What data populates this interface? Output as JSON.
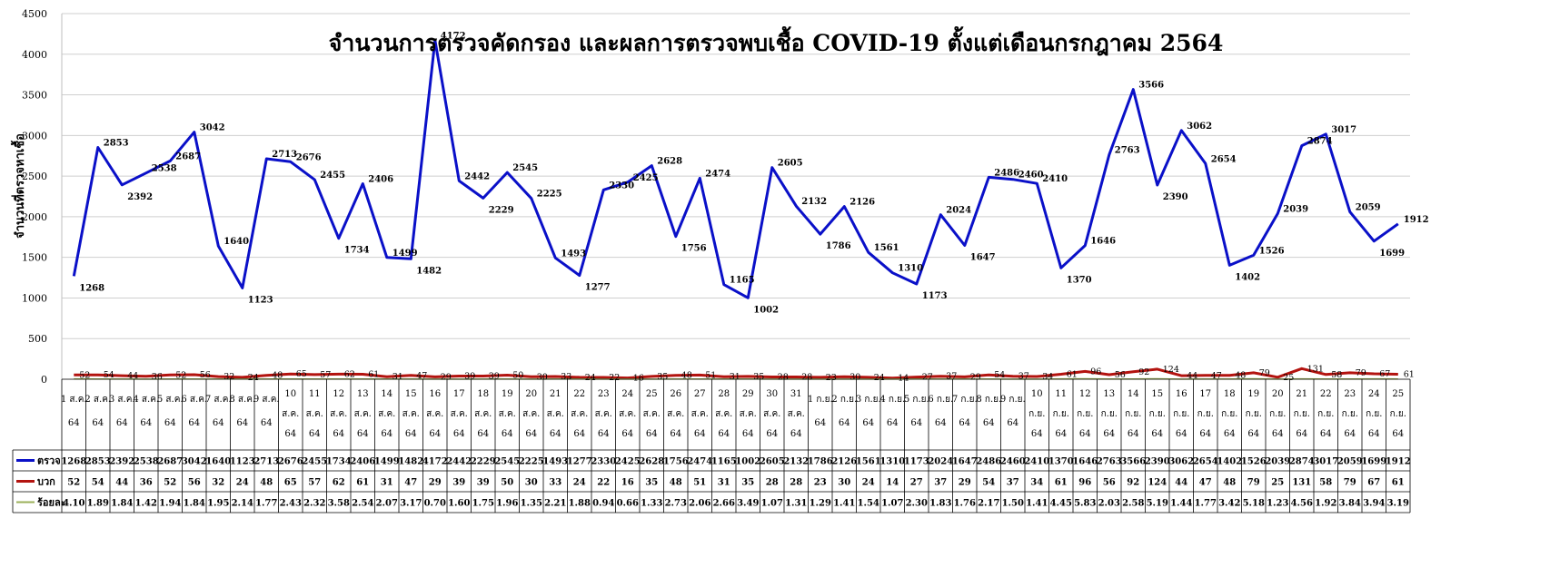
{
  "chart_data": {
    "type": "line",
    "title": "จำนวนการตรวจคัดกรอง และผลการตรวจพบเชื้อ COVID-19 ตั้งแต่เดือนกรกฎาคม 2564",
    "ylabel": "จำนวนที่ตรวจหาเชื้อ",
    "ylim": [
      0,
      4500
    ],
    "yticks": [
      0,
      500,
      1000,
      1500,
      2000,
      2500,
      3000,
      3500,
      4000,
      4500
    ],
    "grid": true,
    "categories": [
      [
        "1 ส.ค.",
        "64"
      ],
      [
        "2 ส.ค.",
        "64"
      ],
      [
        "3 ส.ค.",
        "64"
      ],
      [
        "4 ส.ค.",
        "64"
      ],
      [
        "5 ส.ค.",
        "64"
      ],
      [
        "6 ส.ค.",
        "64"
      ],
      [
        "7 ส.ค.",
        "64"
      ],
      [
        "8 ส.ค.",
        "64"
      ],
      [
        "9 ส.ค.",
        "64"
      ],
      [
        "10",
        "ส.ค.",
        "64"
      ],
      [
        "11",
        "ส.ค.",
        "64"
      ],
      [
        "12",
        "ส.ค.",
        "64"
      ],
      [
        "13",
        "ส.ค.",
        "64"
      ],
      [
        "14",
        "ส.ค.",
        "64"
      ],
      [
        "15",
        "ส.ค.",
        "64"
      ],
      [
        "16",
        "ส.ค.",
        "64"
      ],
      [
        "17",
        "ส.ค.",
        "64"
      ],
      [
        "18",
        "ส.ค.",
        "64"
      ],
      [
        "19",
        "ส.ค.",
        "64"
      ],
      [
        "20",
        "ส.ค.",
        "64"
      ],
      [
        "21",
        "ส.ค.",
        "64"
      ],
      [
        "22",
        "ส.ค.",
        "64"
      ],
      [
        "23",
        "ส.ค.",
        "64"
      ],
      [
        "24",
        "ส.ค.",
        "64"
      ],
      [
        "25",
        "ส.ค.",
        "64"
      ],
      [
        "26",
        "ส.ค.",
        "64"
      ],
      [
        "27",
        "ส.ค.",
        "64"
      ],
      [
        "28",
        "ส.ค.",
        "64"
      ],
      [
        "29",
        "ส.ค.",
        "64"
      ],
      [
        "30",
        "ส.ค.",
        "64"
      ],
      [
        "31",
        "ส.ค.",
        "64"
      ],
      [
        "1 ก.ย.",
        "64"
      ],
      [
        "2 ก.ย.",
        "64"
      ],
      [
        "3 ก.ย.",
        "64"
      ],
      [
        "4 ก.ย.",
        "64"
      ],
      [
        "5 ก.ย.",
        "64"
      ],
      [
        "6 ก.ย.",
        "64"
      ],
      [
        "7 ก.ย.",
        "64"
      ],
      [
        "8 ก.ย.",
        "64"
      ],
      [
        "9 ก.ย.",
        "64"
      ],
      [
        "10",
        "ก.ย.",
        "64"
      ],
      [
        "11",
        "ก.ย.",
        "64"
      ],
      [
        "12",
        "ก.ย.",
        "64"
      ],
      [
        "13",
        "ก.ย.",
        "64"
      ],
      [
        "14",
        "ก.ย.",
        "64"
      ],
      [
        "15",
        "ก.ย.",
        "64"
      ],
      [
        "16",
        "ก.ย.",
        "64"
      ],
      [
        "17",
        "ก.ย.",
        "64"
      ],
      [
        "18",
        "ก.ย.",
        "64"
      ],
      [
        "19",
        "ก.ย.",
        "64"
      ],
      [
        "20",
        "ก.ย.",
        "64"
      ],
      [
        "21",
        "ก.ย.",
        "64"
      ],
      [
        "22",
        "ก.ย.",
        "64"
      ],
      [
        "23",
        "ก.ย.",
        "64"
      ],
      [
        "24",
        "ก.ย.",
        "64"
      ],
      [
        "25",
        "ก.ย.",
        "64"
      ]
    ],
    "series": [
      {
        "name": "ตรวจ",
        "color": "#0a10c8",
        "labels_on_chart": true,
        "values": [
          1268,
          2853,
          2392,
          2538,
          2687,
          3042,
          1640,
          1123,
          2713,
          2676,
          2455,
          1734,
          2406,
          1499,
          1482,
          4172,
          2442,
          2229,
          2545,
          2225,
          1493,
          1277,
          2330,
          2425,
          2628,
          1756,
          2474,
          1165,
          1002,
          2605,
          2132,
          1786,
          2126,
          1561,
          1310,
          1173,
          2024,
          1647,
          2486,
          2460,
          2410,
          1370,
          1646,
          2763,
          3566,
          2390,
          3062,
          2654,
          1402,
          1526,
          2039,
          2874,
          3017,
          2059,
          1699,
          1912
        ]
      },
      {
        "name": "บวก",
        "color": "#b3130f",
        "labels_on_chart": true,
        "values": [
          52,
          54,
          44,
          36,
          52,
          56,
          32,
          24,
          48,
          65,
          57,
          62,
          61,
          31,
          47,
          29,
          39,
          39,
          50,
          30,
          33,
          24,
          22,
          16,
          35,
          48,
          51,
          31,
          35,
          28,
          28,
          23,
          30,
          24,
          14,
          27,
          37,
          29,
          54,
          37,
          34,
          61,
          96,
          56,
          92,
          124,
          44,
          47,
          48,
          79,
          25,
          131,
          58,
          79,
          67,
          61
        ]
      },
      {
        "name": "ร้อยละ",
        "color": "#9bb05a",
        "labels_on_chart": false,
        "values": [
          "4.10",
          "1.89",
          "1.84",
          "1.42",
          "1.94",
          "1.84",
          "1.95",
          "2.14",
          "1.77",
          "2.43",
          "2.32",
          "3.58",
          "2.54",
          "2.07",
          "3.17",
          "0.70",
          "1.60",
          "1.75",
          "1.96",
          "1.35",
          "2.21",
          "1.88",
          "0.94",
          "0.66",
          "1.33",
          "2.73",
          "2.06",
          "2.66",
          "3.49",
          "1.07",
          "1.31",
          "1.29",
          "1.41",
          "1.54",
          "1.07",
          "2.30",
          "1.83",
          "1.76",
          "2.17",
          "1.50",
          "1.41",
          "4.45",
          "5.83",
          "2.03",
          "2.58",
          "5.19",
          "1.44",
          "1.77",
          "3.42",
          "5.18",
          "1.23",
          "4.56",
          "1.92",
          "3.84",
          "3.94",
          "3.19"
        ]
      }
    ]
  }
}
